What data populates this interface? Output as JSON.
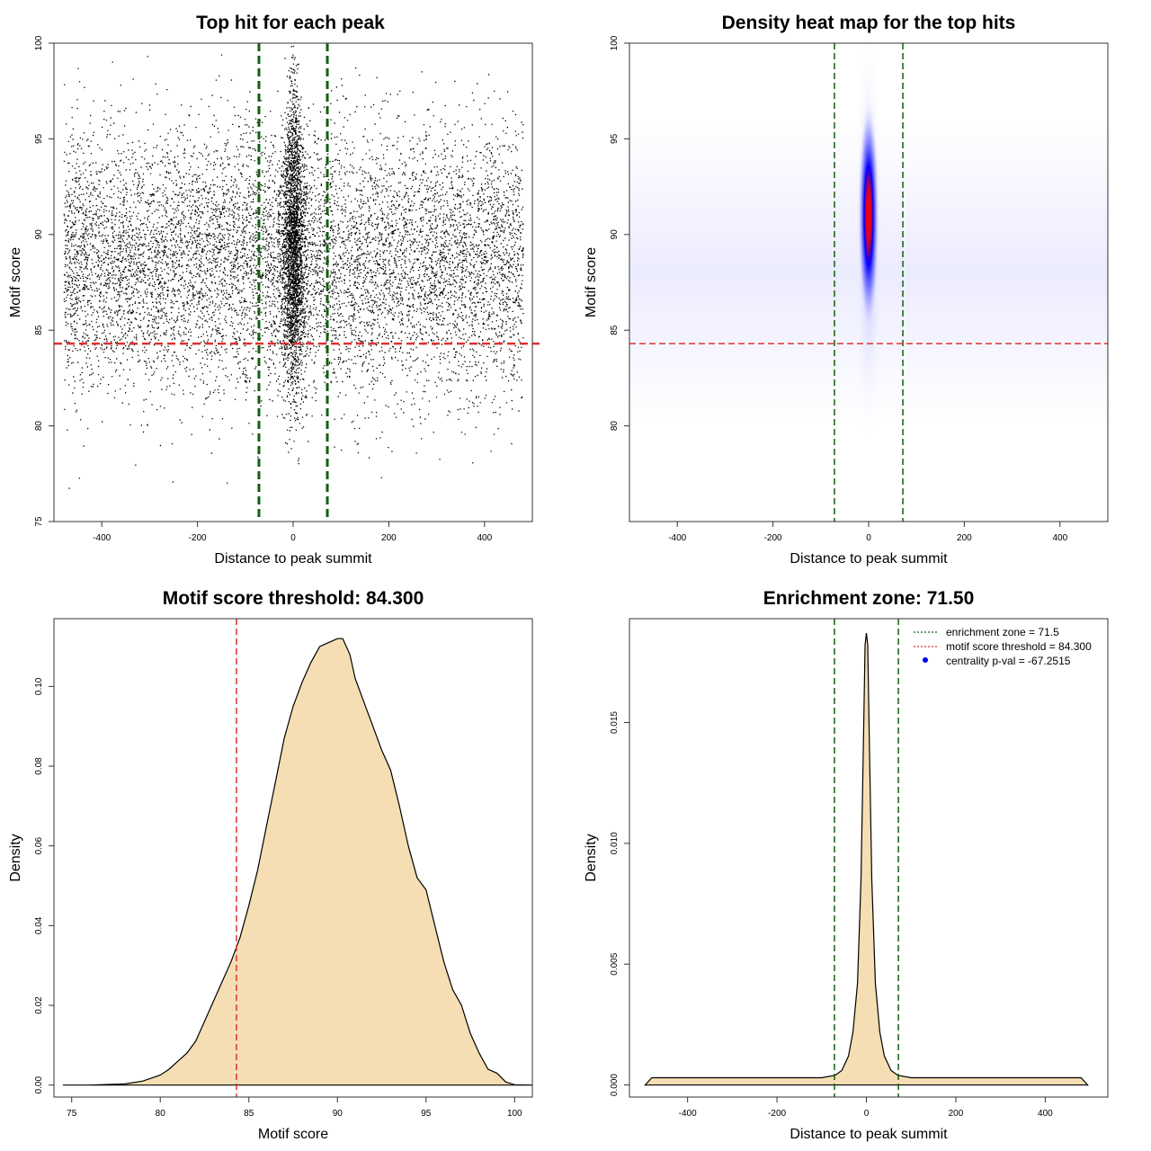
{
  "colors": {
    "threshold_line": "#e03030",
    "zone_line": "#106010",
    "fill": "#f5deb3",
    "heat_low": "#ffffff",
    "heat_mid": "#0000ff",
    "heat_high": "#ff0000",
    "centrality_dot": "#0000ff"
  },
  "chart_data": [
    {
      "type": "scatter",
      "title": "Top hit for each peak",
      "xlabel": "Distance to peak summit",
      "ylabel": "Motif score",
      "xlim": [
        -500,
        500
      ],
      "ylim": [
        75,
        100
      ],
      "xticks": [
        -400,
        -200,
        0,
        200,
        400
      ],
      "yticks": [
        75,
        80,
        85,
        90,
        95,
        100
      ],
      "threshold": 84.3,
      "zone": [
        -71.5,
        71.5
      ],
      "background_points": {
        "x_range": [
          -480,
          480
        ],
        "score_mean": 88.6,
        "score_sd": 3.4,
        "count": 9000
      },
      "central_points": {
        "x_sd": 22,
        "score_mean": 89.5,
        "score_sd": 3.8,
        "count": 6500
      }
    },
    {
      "type": "heatmap",
      "title": "Density heat map for the top hits",
      "xlabel": "Distance to peak summit",
      "ylabel": "Motif score",
      "xlim": [
        -500,
        500
      ],
      "ylim": [
        75,
        100
      ],
      "xticks": [
        -400,
        -200,
        0,
        200,
        400
      ],
      "yticks": [
        80,
        85,
        90,
        95,
        100
      ],
      "threshold": 84.3,
      "zone": [
        -71.5,
        71.5
      ],
      "hotspot": {
        "x": 0,
        "score": 91
      }
    },
    {
      "type": "area",
      "title": "Motif score threshold: 84.300",
      "xlabel": "Motif score",
      "ylabel": "Density",
      "xlim": [
        74,
        101
      ],
      "ylim": [
        -0.003,
        0.117
      ],
      "xticks": [
        75,
        80,
        85,
        90,
        95,
        100
      ],
      "yticks": [
        0.0,
        0.02,
        0.04,
        0.06,
        0.08,
        0.1
      ],
      "ytick_labels": [
        "0.00",
        "0.02",
        "0.04",
        "0.06",
        "0.08",
        "0.10"
      ],
      "threshold": 84.3,
      "x": [
        74.5,
        76,
        78,
        79,
        80,
        80.5,
        81,
        81.5,
        82,
        82.5,
        83,
        83.5,
        84,
        84.5,
        85,
        85.5,
        86,
        86.5,
        87,
        87.5,
        88,
        88.5,
        89,
        89.5,
        90,
        90.3,
        90.7,
        91,
        91.5,
        92,
        92.5,
        93,
        93.5,
        94,
        94.5,
        95,
        95.5,
        96,
        96.5,
        97,
        97.5,
        98,
        98.5,
        99,
        99.5,
        100,
        101
      ],
      "y": [
        0.0,
        0.0,
        0.0003,
        0.001,
        0.0025,
        0.004,
        0.006,
        0.008,
        0.011,
        0.016,
        0.021,
        0.026,
        0.031,
        0.037,
        0.045,
        0.054,
        0.065,
        0.076,
        0.087,
        0.095,
        0.101,
        0.106,
        0.11,
        0.111,
        0.112,
        0.112,
        0.108,
        0.102,
        0.096,
        0.09,
        0.084,
        0.079,
        0.07,
        0.06,
        0.052,
        0.049,
        0.04,
        0.031,
        0.024,
        0.02,
        0.013,
        0.008,
        0.004,
        0.003,
        0.0008,
        0.0001,
        0.0
      ],
      "area_color": "#f5deb3"
    },
    {
      "type": "area",
      "title": "Enrichment zone: 71.50",
      "xlabel": "Distance to peak summit",
      "ylabel": "Density",
      "xlim": [
        -530,
        540
      ],
      "ylim": [
        -0.0005,
        0.0193
      ],
      "xticks": [
        -400,
        -200,
        0,
        200,
        400
      ],
      "yticks": [
        0.0,
        0.005,
        0.01,
        0.015
      ],
      "ytick_labels": [
        "0.000",
        "0.005",
        "0.010",
        "0.015"
      ],
      "zone": [
        -71.5,
        71.5
      ],
      "x": [
        -495,
        -480,
        -400,
        -300,
        -200,
        -100,
        -70,
        -55,
        -40,
        -30,
        -20,
        -12,
        -6,
        -3,
        0,
        3,
        6,
        12,
        20,
        30,
        40,
        55,
        70,
        100,
        200,
        300,
        400,
        480,
        495
      ],
      "y": [
        0.0,
        0.0003,
        0.0003,
        0.0003,
        0.0003,
        0.0003,
        0.0004,
        0.0006,
        0.0012,
        0.0022,
        0.0042,
        0.0085,
        0.0148,
        0.0182,
        0.0187,
        0.0182,
        0.0148,
        0.0085,
        0.0042,
        0.0022,
        0.0012,
        0.0006,
        0.0004,
        0.0003,
        0.0003,
        0.0003,
        0.0003,
        0.0003,
        0.0
      ],
      "area_color": "#f5deb3",
      "legend": [
        {
          "label": "enrichment zone = 71.5",
          "kind": "line",
          "color": "#106010"
        },
        {
          "label": "motif score threshold = 84.300",
          "kind": "line",
          "color": "#e03030"
        },
        {
          "label": "centrality p-val = -67.2515",
          "kind": "dot",
          "color": "#0000ff"
        }
      ]
    }
  ]
}
